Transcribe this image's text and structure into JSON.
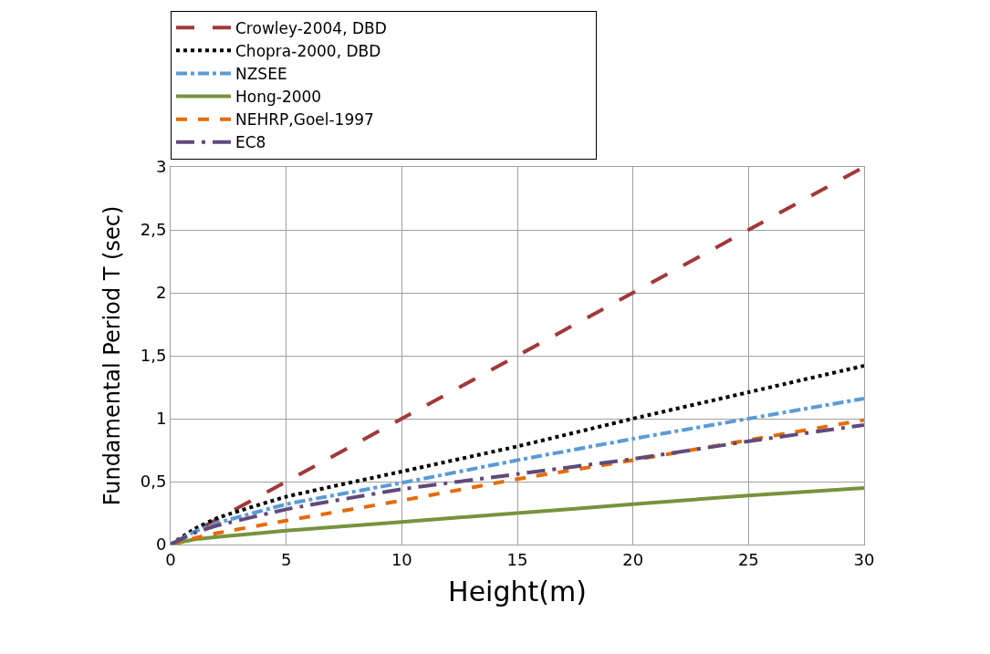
{
  "chart_data": {
    "type": "line",
    "xlabel": "Height(m)",
    "ylabel": "Fundamental Period T (sec)",
    "x": [
      0,
      1,
      2,
      5,
      10,
      15,
      20,
      25,
      30
    ],
    "series": [
      {
        "name": "Crowley-2004, DBD",
        "color": "#a0393a",
        "line_style": "longdash",
        "values": [
          0,
          0.1,
          0.2,
          0.5,
          1.0,
          1.5,
          2.0,
          2.5,
          3.0
        ]
      },
      {
        "name": "Chopra-2000, DBD",
        "color": "#000000",
        "line_style": "dotted",
        "values": [
          0,
          0.12,
          0.21,
          0.38,
          0.58,
          0.78,
          1.0,
          1.21,
          1.42
        ]
      },
      {
        "name": "NZSEE",
        "color": "#5b9bd5",
        "line_style": "dashdot",
        "values": [
          0,
          0.1,
          0.17,
          0.32,
          0.49,
          0.67,
          0.84,
          1.0,
          1.16
        ]
      },
      {
        "name": "Hong-2000",
        "color": "#77933c",
        "line_style": "solid",
        "values": [
          0,
          0.04,
          0.06,
          0.11,
          0.18,
          0.25,
          0.32,
          0.39,
          0.45
        ]
      },
      {
        "name": "NEHRP,Goel-1997",
        "color": "#e46c0a",
        "line_style": "dashed",
        "values": [
          0,
          0.05,
          0.09,
          0.19,
          0.35,
          0.52,
          0.67,
          0.83,
          0.99
        ]
      },
      {
        "name": "EC8",
        "color": "#604a7b",
        "line_style": "longdashdot",
        "values": [
          0,
          0.09,
          0.15,
          0.28,
          0.44,
          0.56,
          0.68,
          0.82,
          0.95
        ]
      }
    ],
    "xlim": [
      0,
      30
    ],
    "xticks": [
      0,
      5,
      10,
      15,
      20,
      25,
      30
    ],
    "ylim": [
      0,
      3
    ],
    "yticks": [
      0,
      {
        "value": 0.5,
        "label": "0,5"
      },
      1,
      {
        "value": 1.5,
        "label": "1,5"
      },
      2,
      {
        "value": 2.5,
        "label": "2,5"
      },
      3
    ],
    "grid": true,
    "legend": "top",
    "marker": "none"
  }
}
